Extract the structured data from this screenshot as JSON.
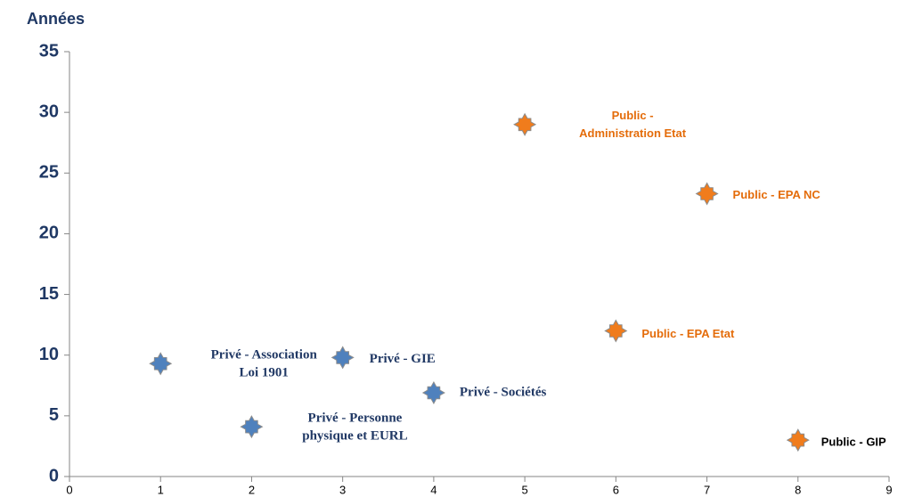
{
  "chart_data": {
    "type": "scatter",
    "y_label": "Années",
    "xlim": [
      0,
      9
    ],
    "xticks": [
      0,
      1,
      2,
      3,
      4,
      5,
      6,
      7,
      8,
      9
    ],
    "ylim": [
      0,
      35
    ],
    "yticks": [
      0,
      5,
      10,
      15,
      20,
      25,
      30,
      35
    ],
    "series": [
      {
        "color": "#4f81bd",
        "label_font": "serif",
        "x": [
          1,
          2,
          3,
          4
        ],
        "values": [
          9.3,
          4.1,
          9.8,
          6.9
        ],
        "labels": [
          [
            "Privé - Association",
            "Loi 1901"
          ],
          [
            "Privé - Personne",
            "physique  et EURL"
          ],
          [
            "Privé - GIE"
          ],
          [
            "Privé - Sociétés"
          ]
        ],
        "label_colors": [
          "#203864",
          "#203864",
          "#203864",
          "#203864"
        ]
      },
      {
        "color": "#f07c1c",
        "label_font": "sans",
        "x": [
          5,
          6,
          7,
          8
        ],
        "values": [
          29,
          12,
          23.3,
          3
        ],
        "labels": [
          [
            "Public -",
            "Administration Etat"
          ],
          [
            "Public - EPA Etat"
          ],
          [
            "Public - EPA NC"
          ],
          [
            "Public - GIP"
          ]
        ],
        "label_colors": [
          "#e46c0a",
          "#e46c0a",
          "#e46c0a",
          "#000000"
        ]
      }
    ]
  }
}
